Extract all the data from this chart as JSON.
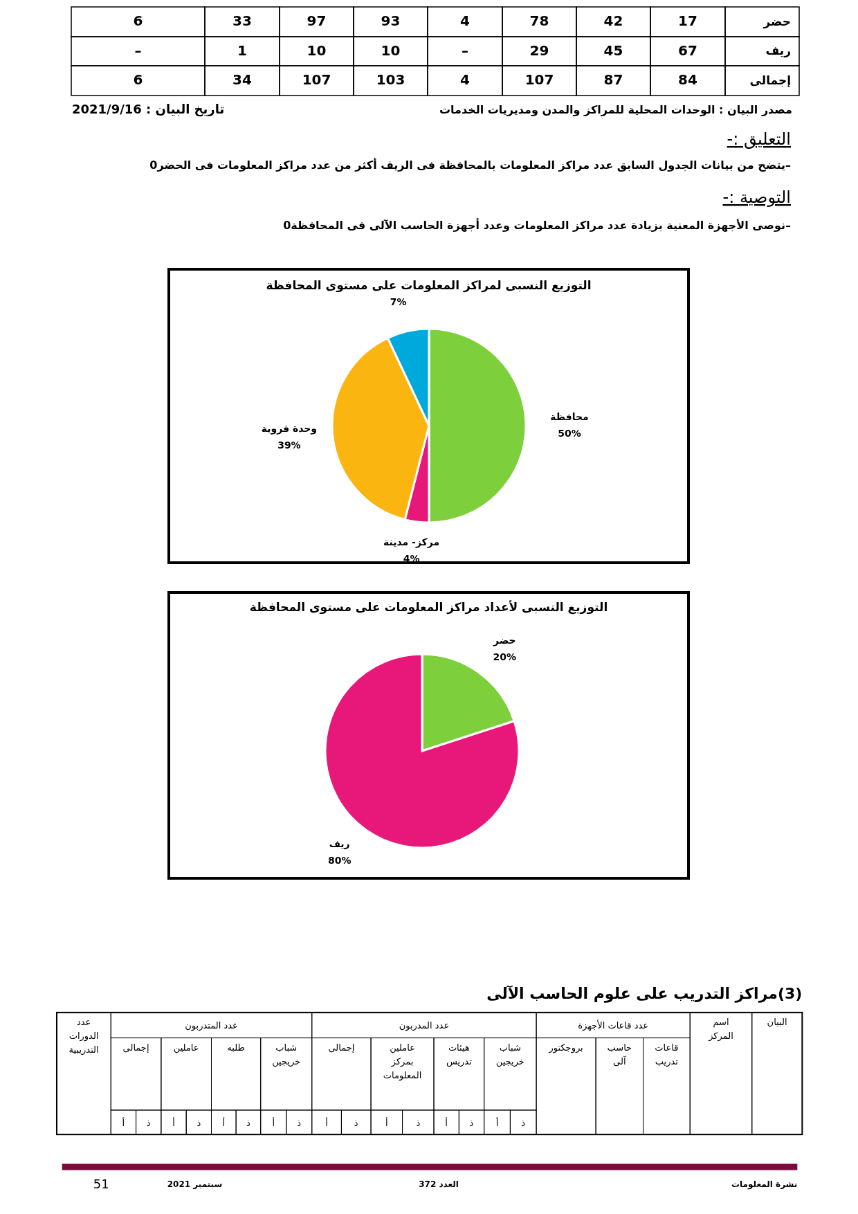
{
  "chart_data": [
    {
      "type": "other",
      "annotations": [
        "حضر",
        "17",
        "42",
        "78",
        "4",
        "93",
        "97",
        "33",
        "6",
        "ريف",
        "67",
        "45",
        "29",
        "–",
        "10",
        "10",
        "1",
        "–",
        "إجمالى",
        "84",
        "87",
        "107",
        "4",
        "103",
        "107",
        "34",
        "6",
        "مصدر البيان : الوحدات المحلية للمراكز والمدن ومديريات الخدمات",
        "تاريخ البيان : 2021/9/16",
        "التعليق :-",
        "–يتضح من بيانات الجدول السابق عدد مراكز المعلومات بالمحافظة فى الريف أكثر من عدد مراكز المعلومات فى الحضر0",
        "التوصية :-",
        "–نوصى الأجهزة المعنية بزيادة عدد مراكز المعلومات وعدد أجهزة الحاسب الآلى فى المحافظة0"
      ]
    },
    {
      "type": "pie",
      "title": "التوزيع النسبى لمراكز المعلومات على مستوى المحافظة",
      "categories": [
        "محافظة",
        "مركز- مدينة",
        "وحدة قروية",
        null
      ],
      "values": [
        50,
        4,
        39,
        7
      ],
      "colors": [
        "#7dcf3b",
        "#e8177a",
        "#fbb511",
        "#00a9dc"
      ],
      "value_labels": [
        "50%",
        "4%",
        "39%",
        "7%"
      ]
    },
    {
      "type": "pie",
      "title": "التوزيع النسبى لأعداد مراكز المعلومات على مستوى المحافظة",
      "categories": [
        "حضر",
        "ريف"
      ],
      "values": [
        20,
        80
      ],
      "colors": [
        "#7dcf3b",
        "#e8177a"
      ],
      "value_labels": [
        "20%",
        "80%"
      ]
    },
    {
      "type": "other",
      "title": "(3)مراكز التدريب على علوم الحاسب الآلى",
      "annotations": [
        "البيان",
        "اسم المركز",
        "عدد قاعات الأجهزة",
        "قاعات تدريب",
        "حاسب آلى",
        "بروجكتور",
        "عدد المدربون",
        "شباب خريجين",
        "هيئات تدريس",
        "عاملين بمركز المعلومات",
        "إجمالى",
        "عدد المتدربون",
        "شباب خريجين",
        "طلبه",
        "عاملين",
        "إجمالى",
        "عدد الدورات التدريبية",
        "ذ",
        "أ",
        "ذ",
        "أ",
        "ذ",
        "أ",
        "ذ",
        "أ",
        "ذ",
        "أ",
        "ذ",
        "أ",
        "ذ",
        "أ",
        "ذ",
        "أ",
        "نشرة المعلومات",
        "العدد 372",
        "سبتمبر 2021",
        "51"
      ]
    }
  ]
}
